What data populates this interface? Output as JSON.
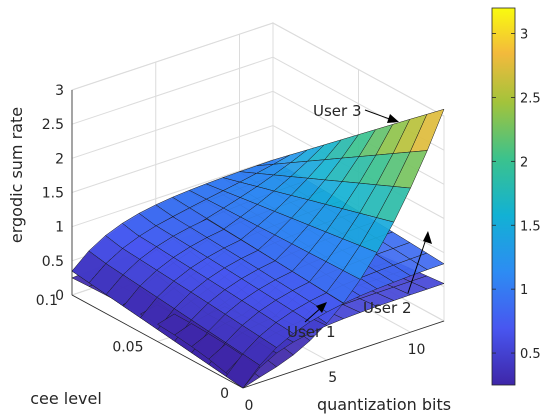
{
  "chart_data": {
    "type": "surface",
    "title": "",
    "zlabel": "ergodic sum rate",
    "ylabel": "cee level",
    "xlabel": "quantization bits",
    "x_range": [
      0,
      12
    ],
    "y_range": [
      0,
      0.1
    ],
    "z_range": [
      0,
      3
    ],
    "x_ticks": [
      "0",
      "5",
      "10"
    ],
    "y_ticks": [
      "0",
      "0.05",
      "0.1"
    ],
    "z_ticks": [
      "0",
      "0.5",
      "1",
      "1.5",
      "2",
      "2.5",
      "3"
    ],
    "grid": true,
    "colormap": "parula",
    "colorbar": {
      "range": [
        0.25,
        3.2
      ],
      "ticks": [
        "0.5",
        "1",
        "1.5",
        "2",
        "2.5",
        "3"
      ]
    },
    "series": [
      {
        "name": "User 1",
        "description": "low surface, saturates quickly",
        "corner_values": {
          "x0_y0": 0.0,
          "x12_y0": 0.55,
          "x0_y0.1": 0.3,
          "x12_y0.1": 0.5
        }
      },
      {
        "name": "User 2",
        "description": "mid surface, rises then saturates",
        "corner_values": {
          "x0_y0": 0.0,
          "x12_y0": 1.0,
          "x0_y0.1": 0.35,
          "x12_y0.1": 1.0
        }
      },
      {
        "name": "User 3",
        "description": "high surface at low cee level",
        "corner_values": {
          "x0_y0": 0.0,
          "x12_y0": 3.0,
          "x0_y0.1": 0.35,
          "x12_y0.1": 1.0
        }
      }
    ]
  }
}
